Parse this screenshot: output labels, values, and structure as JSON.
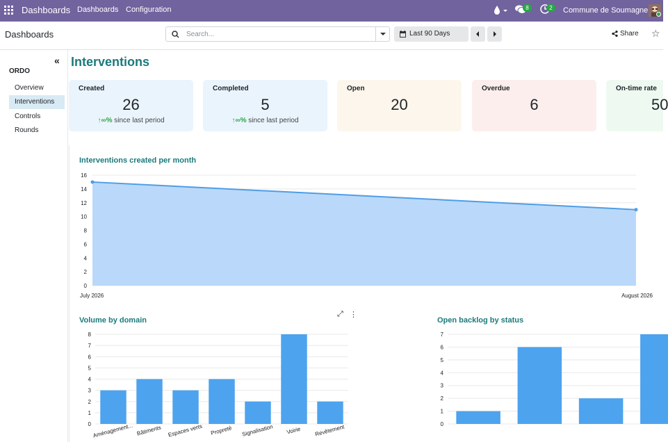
{
  "topbar": {
    "app_name": "Dashboards",
    "menu": [
      "Dashboards",
      "Configuration"
    ],
    "messages_count": "8",
    "activities_count": "2",
    "company": "Commune de Soumagne"
  },
  "control_panel": {
    "breadcrumb": "Dashboards",
    "search_placeholder": "Search...",
    "period": "Last 90 Days",
    "share_label": "Share"
  },
  "sidebar": {
    "group": "ORDO",
    "items": [
      {
        "label": "Overview",
        "active": false
      },
      {
        "label": "Interventions",
        "active": true
      },
      {
        "label": "Controls",
        "active": false
      },
      {
        "label": "Rounds",
        "active": false
      }
    ]
  },
  "page": {
    "title": "Interventions"
  },
  "kpis": [
    {
      "label": "Created",
      "value": "26",
      "trend": "↑∞%",
      "trend_text": "since last period",
      "bg": "#eaf4fc"
    },
    {
      "label": "Completed",
      "value": "5",
      "trend": "↑∞%",
      "trend_text": "since last period",
      "bg": "#eaf4fc"
    },
    {
      "label": "Open",
      "value": "20",
      "trend": "",
      "trend_text": "",
      "bg": "#fdf6ec"
    },
    {
      "label": "Overdue",
      "value": "6",
      "trend": "",
      "trend_text": "",
      "bg": "#fdeeee"
    },
    {
      "label": "On-time rate",
      "value": "50",
      "trend": "",
      "trend_text": "",
      "bg": "#eefaf1"
    }
  ],
  "chart_data": [
    {
      "type": "area",
      "title": "Interventions created per month",
      "x": [
        "July 2026",
        "August 2026"
      ],
      "values": [
        15,
        11
      ],
      "yticks": [
        0,
        2,
        4,
        6,
        8,
        10,
        12,
        14,
        16
      ],
      "ylim": [
        0,
        16
      ],
      "grid": true,
      "color": "#4f9de6",
      "fill": "#b6d7fa"
    },
    {
      "type": "bar",
      "title": "Volume by domain",
      "categories": [
        "Aménagement...",
        "Bâtiments",
        "Espaces verts",
        "Propreté",
        "Signalisation",
        "Voirie",
        "Revêtement"
      ],
      "values": [
        3,
        4,
        3,
        4,
        2,
        8,
        2
      ],
      "yticks": [
        0,
        1,
        2,
        3,
        4,
        5,
        6,
        7,
        8
      ],
      "ylim": [
        0,
        8
      ],
      "grid": true,
      "color": "#4da3ee"
    },
    {
      "type": "bar",
      "title": "Open backlog by status",
      "categories": [
        "",
        "",
        "",
        ""
      ],
      "values": [
        1,
        6,
        2,
        7
      ],
      "yticks": [
        0,
        1,
        2,
        3,
        4,
        5,
        6,
        7
      ],
      "ylim": [
        0,
        7
      ],
      "grid": true,
      "color": "#4da3ee"
    }
  ]
}
